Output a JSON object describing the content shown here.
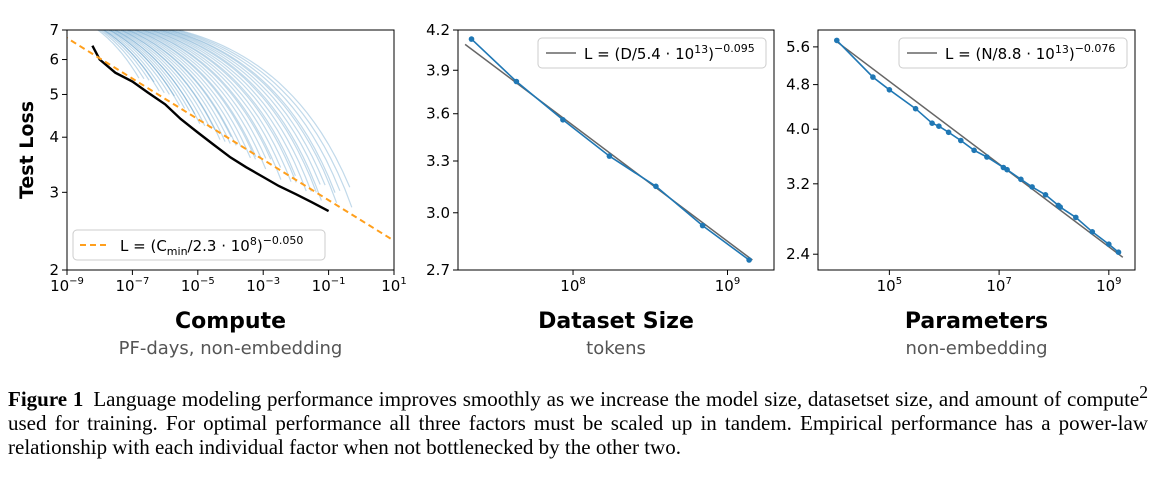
{
  "chart_data": [
    {
      "type": "line",
      "ylabel": "Test Loss",
      "xtitle": "Compute",
      "xsubtitle": "PF-days, non-embedding",
      "x_scale": "log",
      "y_scale": "log",
      "xlim": [
        1e-09,
        10
      ],
      "ylim": [
        2,
        7
      ],
      "x_ticks": [
        {
          "base": "10",
          "exp": "−9",
          "v": 1e-09
        },
        {
          "base": "10",
          "exp": "−7",
          "v": 1e-07
        },
        {
          "base": "10",
          "exp": "−5",
          "v": 1e-05
        },
        {
          "base": "10",
          "exp": "−3",
          "v": 0.001
        },
        {
          "base": "10",
          "exp": "−1",
          "v": 0.1
        },
        {
          "base": "10",
          "exp": "1",
          "v": 10
        }
      ],
      "y_ticks": [
        {
          "label": "7",
          "v": 7
        },
        {
          "label": "6",
          "v": 6
        },
        {
          "label": "5",
          "v": 5
        },
        {
          "label": "4",
          "v": 4
        },
        {
          "label": "3",
          "v": 3
        },
        {
          "label": "2",
          "v": 2
        }
      ],
      "legend": {
        "position": "lower-left",
        "label": "L = (C_min/2.3 · 10^8)^−0.050",
        "prefix": "L = (C",
        "sub": "min",
        "mid": "/2.3 · 10",
        "sup1": "8",
        "close": ")",
        "sup2": "−0.050"
      },
      "fit_line": {
        "style": "dashed",
        "color": "#ff9f1c",
        "x": [
          4e-10,
          10
        ],
        "y": [
          7.0,
          2.33
        ]
      },
      "frontier": {
        "color": "#000000",
        "x": [
          6e-09,
          1e-08,
          3e-08,
          1e-07,
          3e-07,
          1e-06,
          3e-06,
          1e-05,
          3e-05,
          0.0001,
          0.0003,
          0.001,
          0.003,
          0.01,
          0.03,
          0.1
        ],
        "y": [
          6.45,
          6.0,
          5.6,
          5.35,
          5.05,
          4.75,
          4.4,
          4.1,
          3.85,
          3.6,
          3.42,
          3.25,
          3.1,
          2.97,
          2.85,
          2.72
        ]
      },
      "runs_color": "#1f77b4"
    },
    {
      "type": "line",
      "xtitle": "Dataset Size",
      "xsubtitle": "tokens",
      "x_scale": "log",
      "y_scale": "log",
      "xlim": [
        18000000.0,
        2000000000.0
      ],
      "ylim": [
        2.7,
        4.2
      ],
      "x_ticks": [
        {
          "base": "10",
          "exp": "8",
          "v": 100000000.0
        },
        {
          "base": "10",
          "exp": "9",
          "v": 1000000000.0
        }
      ],
      "y_ticks": [
        {
          "label": "4.2",
          "v": 4.2
        },
        {
          "label": "3.9",
          "v": 3.9
        },
        {
          "label": "3.6",
          "v": 3.6
        },
        {
          "label": "3.3",
          "v": 3.3
        },
        {
          "label": "3.0",
          "v": 3.0
        },
        {
          "label": "2.7",
          "v": 2.7
        }
      ],
      "legend": {
        "position": "top-right",
        "label": "L = (D/5.4 · 10^13)^−0.095",
        "prefix": "L = (D/5.4 · 10",
        "sup1": "13",
        "close": ")",
        "sup2": "−0.095"
      },
      "series": [
        {
          "x": [
            22000000.0,
            43000000.0,
            86000000.0,
            172000000.0,
            344000000.0,
            690000000.0,
            1380000000.0
          ],
          "y": [
            4.13,
            3.82,
            3.56,
            3.33,
            3.15,
            2.93,
            2.75
          ],
          "color": "#1f77b4"
        }
      ],
      "fit_line": {
        "color": "#666666",
        "x": [
          20000000.0,
          1450000000.0
        ],
        "y": [
          4.09,
          2.75
        ]
      }
    },
    {
      "type": "line",
      "xtitle": "Parameters",
      "xsubtitle": "non-embedding",
      "x_scale": "log",
      "y_scale": "log",
      "xlim": [
        5000.0,
        3000000000.0
      ],
      "ylim": [
        2.25,
        6.0
      ],
      "x_ticks": [
        {
          "base": "10",
          "exp": "5",
          "v": 100000.0
        },
        {
          "base": "10",
          "exp": "7",
          "v": 10000000.0
        },
        {
          "base": "10",
          "exp": "9",
          "v": 1000000000.0
        }
      ],
      "y_ticks": [
        {
          "label": "5.6",
          "v": 5.6
        },
        {
          "label": "4.8",
          "v": 4.8
        },
        {
          "label": "4.0",
          "v": 4.0
        },
        {
          "label": "3.2",
          "v": 3.2
        },
        {
          "label": "2.4",
          "v": 2.4
        }
      ],
      "legend": {
        "position": "top-right",
        "label": "L = (N/8.8 · 10^13)^−0.076",
        "prefix": "L = (N/8.8 · 10",
        "sup1": "13",
        "close": ")",
        "sup2": "−0.076"
      },
      "series": [
        {
          "x": [
            11000.0,
            50000.0,
            100000.0,
            300000.0,
            600000.0,
            800000.0,
            1200000.0,
            2000000.0,
            3500000.0,
            6000000.0,
            12000000.0,
            14000000.0,
            25000000.0,
            40000000.0,
            70000000.0,
            120000000.0,
            130000000.0,
            250000000.0,
            500000000.0,
            1000000000.0,
            1500000000.0
          ],
          "y": [
            5.75,
            4.95,
            4.7,
            4.35,
            4.1,
            4.05,
            3.95,
            3.82,
            3.67,
            3.57,
            3.42,
            3.39,
            3.26,
            3.16,
            3.06,
            2.93,
            2.91,
            2.79,
            2.63,
            2.5,
            2.42
          ],
          "color": "#1f77b4"
        }
      ],
      "fit_line": {
        "color": "#666666",
        "x": [
          11000.0,
          1800000000.0
        ],
        "y": [
          5.72,
          2.37
        ]
      }
    }
  ],
  "caption": {
    "label": "Figure 1",
    "text": "Language modeling performance improves smoothly as we increase the model size, datasetset size, and amount of compute",
    "footnote": "2",
    "text2": " used for training. For optimal performance all three factors must be scaled up in tandem. Empirical performance has a power-law relationship with each individual factor when not bottlenecked by the other two."
  }
}
